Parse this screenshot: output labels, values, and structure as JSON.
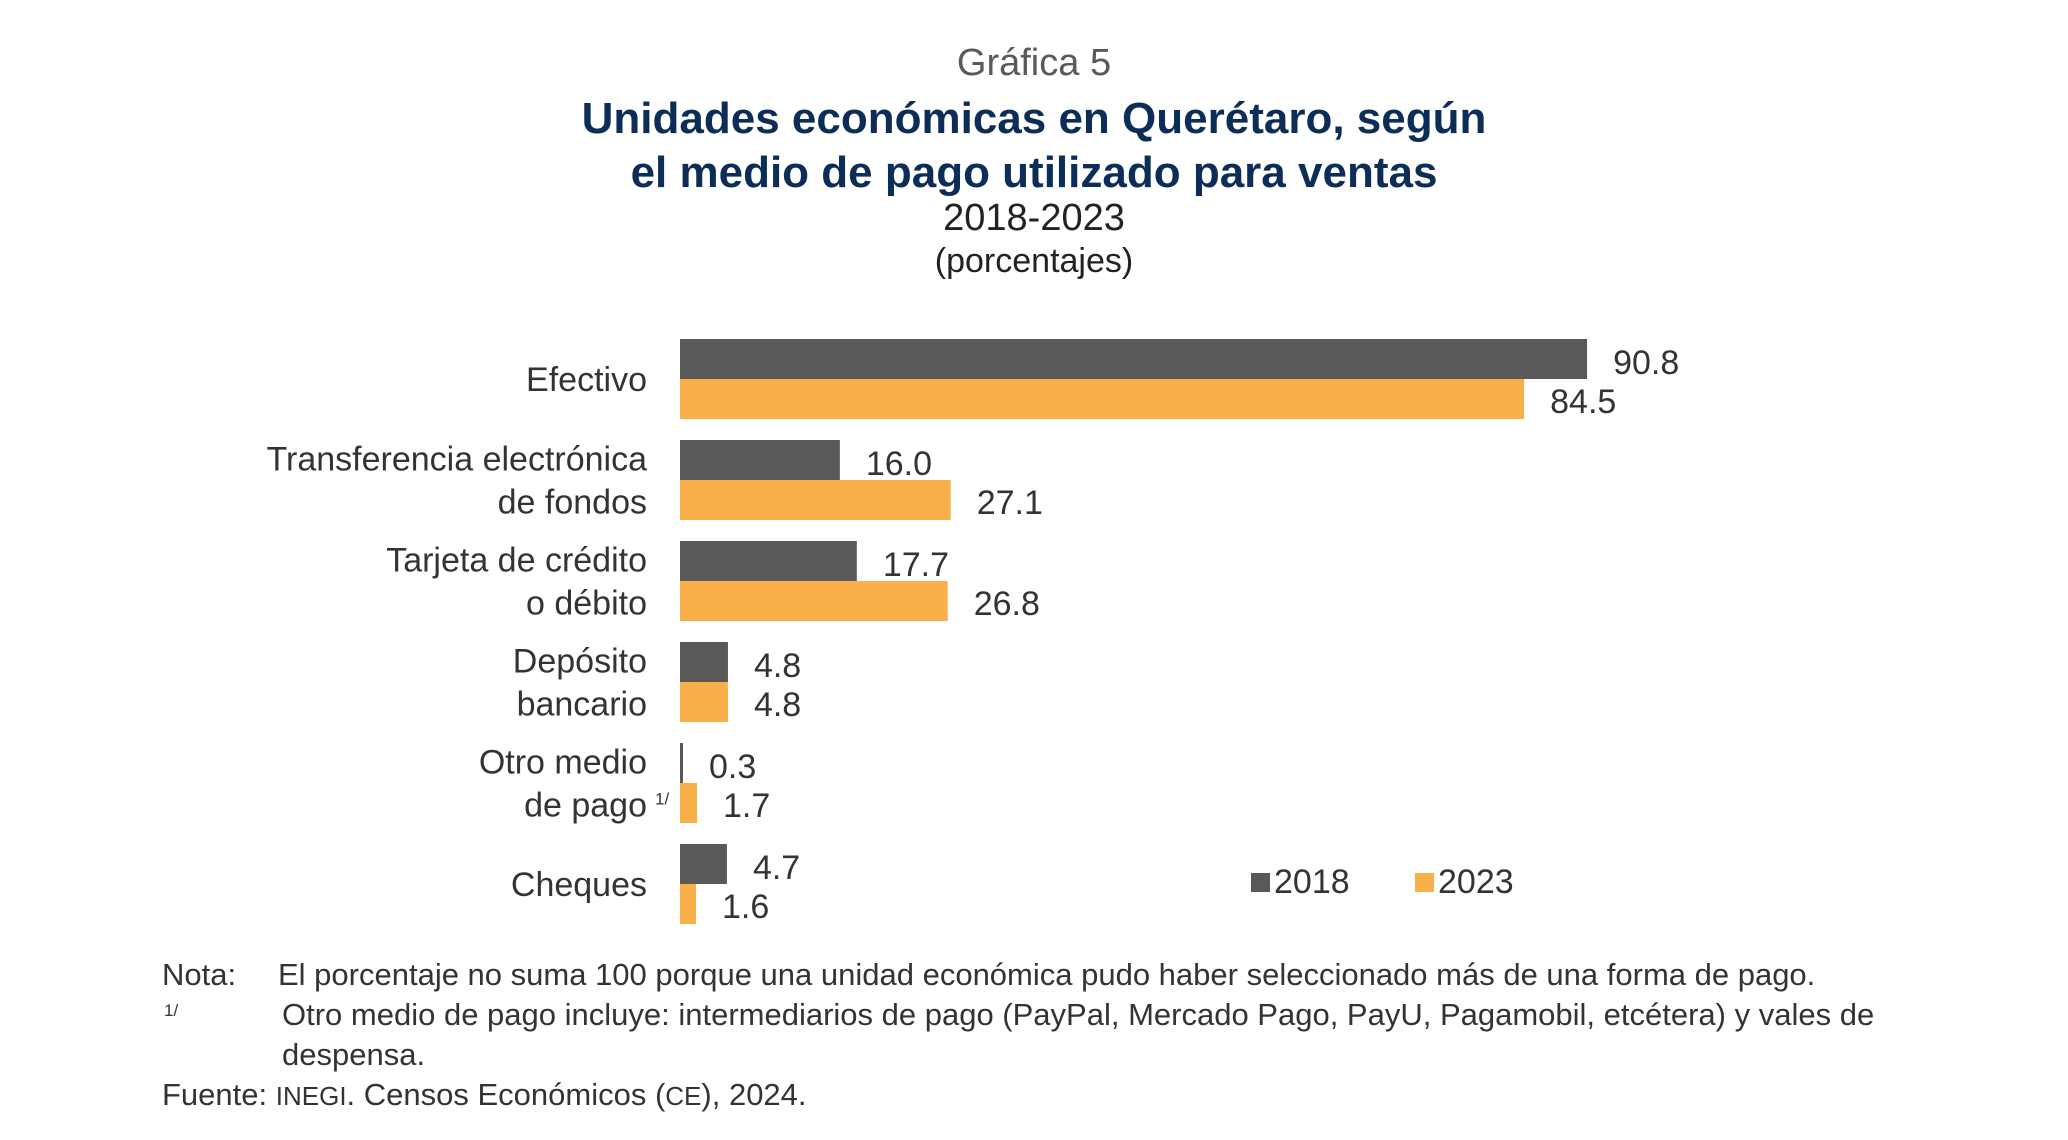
{
  "header": {
    "kicker": "Gráfica 5",
    "title_line1": "Unidades económicas en Querétaro, según",
    "title_line2": "el medio de pago utilizado para ventas",
    "period": "2018-2023",
    "units": "(porcentajes)"
  },
  "chart_data": {
    "type": "bar",
    "orientation": "horizontal",
    "categories": [
      [
        "Efectivo"
      ],
      [
        "Transferencia electrónica",
        "de fondos"
      ],
      [
        "Tarjeta de crédito",
        "o débito"
      ],
      [
        "Depósito",
        "bancario"
      ],
      [
        "Otro medio",
        "de pago"
      ],
      [
        "Cheques"
      ]
    ],
    "category_footnote": {
      "index": 4,
      "mark": "1/"
    },
    "series": [
      {
        "name": "2018",
        "color": "#595959",
        "values": [
          90.8,
          16.0,
          17.7,
          4.8,
          0.3,
          4.7
        ]
      },
      {
        "name": "2023",
        "color": "#f9b04a",
        "values": [
          84.5,
          27.1,
          26.8,
          4.8,
          1.7,
          1.6
        ]
      }
    ],
    "xlim": [
      0,
      100
    ],
    "grid": false,
    "data_labels": true,
    "value_format": "one-decimal",
    "legend_placement": "bottom-right"
  },
  "notes": {
    "note_label": "Nota:",
    "note_text": "El porcentaje no suma 100 porque una unidad económica pudo haber seleccionado más de una forma de pago.",
    "footnote_mark": "1/",
    "footnote_text": "Otro medio de pago incluye: intermediarios de pago (PayPal, Mercado Pago, PayU, Pagamobil, etcétera) y vales de despensa.",
    "source_label": "Fuente:",
    "source_org": "INEGI",
    "source_text": ". Censos Económicos (",
    "source_abbr": "CE",
    "source_end": "), 2024."
  }
}
